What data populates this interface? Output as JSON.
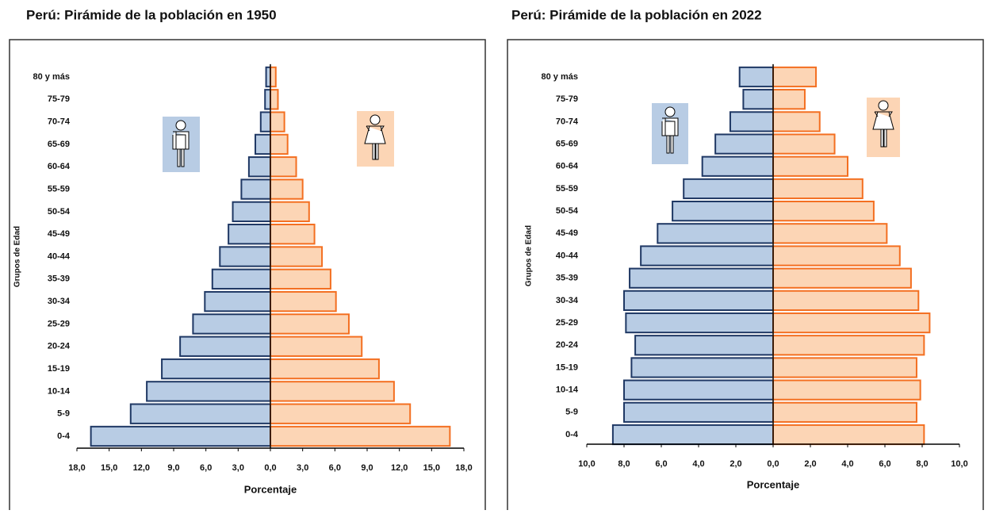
{
  "chart_data": [
    {
      "type": "pyramid",
      "title": "Perú: Pirámide de la población en 1950",
      "ylabel": "Grupos de Edad",
      "xlabel": "Porcentaje",
      "categories": [
        "0-4",
        "5-9",
        "10-14",
        "15-19",
        "20-24",
        "25-29",
        "30-34",
        "35-39",
        "40-44",
        "45-49",
        "50-54",
        "55-59",
        "60-64",
        "65-69",
        "70-74",
        "75-79",
        "80 y más"
      ],
      "series": [
        {
          "color": "#b8cce4",
          "edgecolor": "#1f3864",
          "values": [
            -16.7,
            -13.0,
            -11.5,
            -10.1,
            -8.4,
            -7.2,
            -6.1,
            -5.4,
            -4.7,
            -3.9,
            -3.5,
            -2.7,
            -2.0,
            -1.4,
            -0.9,
            -0.5,
            -0.4
          ]
        },
        {
          "color": "#fcd5b5",
          "edgecolor": "#f36f21",
          "values": [
            16.7,
            13.0,
            11.5,
            10.1,
            8.5,
            7.3,
            6.1,
            5.6,
            4.8,
            4.1,
            3.6,
            3.0,
            2.4,
            1.6,
            1.3,
            0.7,
            0.5
          ]
        }
      ],
      "xlim": [
        -18,
        18
      ],
      "xticks": [
        {
          "value": -18,
          "label": "18,0"
        },
        {
          "value": -15,
          "label": "15,0"
        },
        {
          "value": -12,
          "label": "12,0"
        },
        {
          "value": -9,
          "label": "9,0"
        },
        {
          "value": -6,
          "label": "6,0"
        },
        {
          "value": -3,
          "label": "3,0"
        },
        {
          "value": 0,
          "label": "0,0"
        },
        {
          "value": 3,
          "label": "3,0"
        },
        {
          "value": 6,
          "label": "6,0"
        },
        {
          "value": 9,
          "label": "9,0"
        },
        {
          "value": 12,
          "label": "12,0"
        },
        {
          "value": 15,
          "label": "15,0"
        },
        {
          "value": 18,
          "label": "18,0"
        }
      ]
    },
    {
      "type": "pyramid",
      "title": "Perú: Pirámide de la población en 2022",
      "ylabel": "Grupos de Edad",
      "xlabel": "Porcentaje",
      "categories": [
        "0-4",
        "5-9",
        "10-14",
        "15-19",
        "20-24",
        "25-29",
        "30-34",
        "35-39",
        "40-44",
        "45-49",
        "50-54",
        "55-59",
        "60-64",
        "65-69",
        "70-74",
        "75-79",
        "80 y más"
      ],
      "series": [
        {
          "color": "#b8cce4",
          "edgecolor": "#1f3864",
          "values": [
            -8.6,
            -8.0,
            -8.0,
            -7.6,
            -7.4,
            -7.9,
            -8.0,
            -7.7,
            -7.1,
            -6.2,
            -5.4,
            -4.8,
            -3.8,
            -3.1,
            -2.3,
            -1.6,
            -1.8
          ]
        },
        {
          "color": "#fcd5b5",
          "edgecolor": "#f36f21",
          "values": [
            8.1,
            7.7,
            7.9,
            7.7,
            8.1,
            8.4,
            7.8,
            7.4,
            6.8,
            6.1,
            5.4,
            4.8,
            4.0,
            3.3,
            2.5,
            1.7,
            2.3
          ]
        }
      ],
      "xlim": [
        -10,
        10
      ],
      "xticks": [
        {
          "value": -10,
          "label": "10,0"
        },
        {
          "value": -8,
          "label": "8,0"
        },
        {
          "value": -6,
          "label": "6,0"
        },
        {
          "value": -4,
          "label": "4,0"
        },
        {
          "value": -2,
          "label": "2,0"
        },
        {
          "value": 0,
          "label": "0,0"
        },
        {
          "value": 2,
          "label": "2,0"
        },
        {
          "value": 4,
          "label": "4,0"
        },
        {
          "value": 6,
          "label": "6,0"
        },
        {
          "value": 8,
          "label": "8,0"
        },
        {
          "value": 10,
          "label": "10,0"
        }
      ]
    }
  ]
}
